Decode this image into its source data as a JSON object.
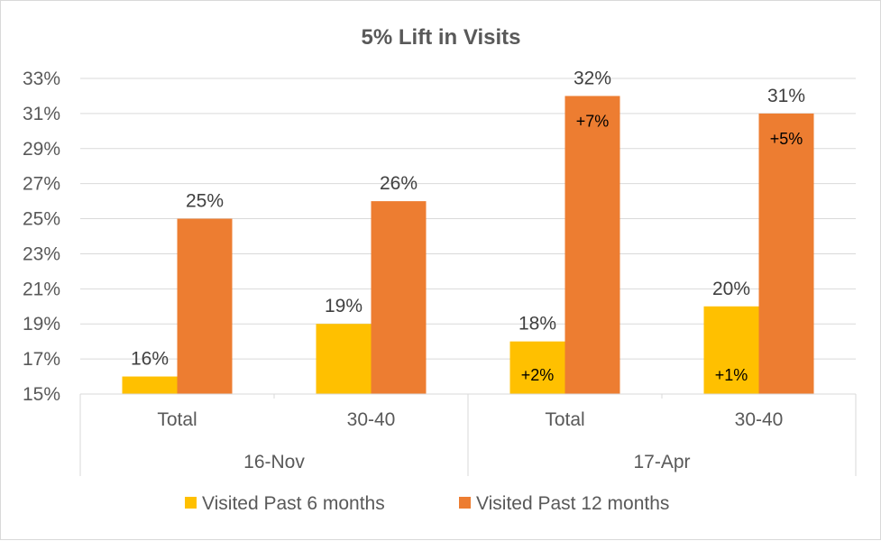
{
  "chart_data": {
    "type": "bar",
    "title": "5% Lift in Visits",
    "xlabel": "",
    "ylabel": "",
    "ylim": [
      15,
      33
    ],
    "y_ticks": [
      "33%",
      "31%",
      "29%",
      "27%",
      "25%",
      "23%",
      "21%",
      "19%",
      "17%",
      "15%"
    ],
    "y_tick_values": [
      33,
      31,
      29,
      27,
      25,
      23,
      21,
      19,
      17,
      15
    ],
    "groups": [
      {
        "label": "16-Nov",
        "categories": [
          "Total",
          "30-40"
        ]
      },
      {
        "label": "17-Apr",
        "categories": [
          "Total",
          "30-40"
        ]
      }
    ],
    "categories": [
      "Total",
      "30-40",
      "Total",
      "30-40"
    ],
    "series": [
      {
        "name": "Visited Past 6 months",
        "color": "#FFC000",
        "values": [
          16,
          19,
          18,
          20
        ],
        "labels": [
          "16%",
          "19%",
          "18%",
          "20%"
        ],
        "annotations": [
          "",
          "",
          "+2%",
          "+1%"
        ]
      },
      {
        "name": "Visited Past 12 months",
        "color": "#ED7D31",
        "values": [
          25,
          26,
          32,
          31
        ],
        "labels": [
          "25%",
          "26%",
          "32%",
          "31%"
        ],
        "annotations": [
          "",
          "",
          "+7%",
          "+5%"
        ]
      }
    ],
    "grid": true,
    "legend_position": "bottom"
  }
}
